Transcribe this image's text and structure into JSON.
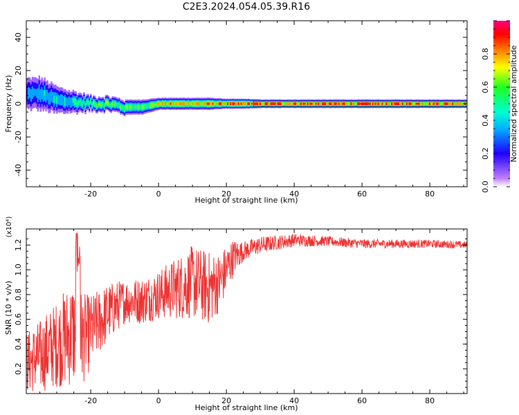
{
  "figure": {
    "title": "C2E3.2024.054.05.39.R16"
  },
  "chart_data": [
    {
      "type": "heatmap",
      "title": "C2E3.2024.054.05.39.R16",
      "xlabel": "Height of straight line (km)",
      "ylabel": "Frequency (Hz)",
      "xlim": [
        -39,
        91
      ],
      "ylim": [
        -50,
        50
      ],
      "x_ticks": [
        -20,
        0,
        20,
        40,
        60,
        80
      ],
      "y_ticks": [
        -40,
        -20,
        0,
        20,
        40
      ],
      "colorbar": {
        "label": "Normalized spectral amplitude",
        "range": [
          0,
          1
        ],
        "ticks": [
          "0.0",
          "0.2",
          "0.4",
          "0.6",
          "0.8"
        ],
        "colormap": [
          "#ffffff",
          "#c080ff",
          "#2000ff",
          "#00b0ff",
          "#00ffd0",
          "#20ff20",
          "#ffff00",
          "#ff8000",
          "#ff0000",
          "#ff0080"
        ]
      },
      "ridge": {
        "description_points_x": [
          -39,
          -35,
          -30,
          -25,
          -20,
          -15,
          -10,
          -5,
          0,
          5,
          10,
          15,
          20,
          25,
          30,
          40,
          60,
          91
        ],
        "frequency": [
          6,
          6,
          2,
          1,
          0,
          0,
          -2,
          -2,
          0,
          0,
          0,
          0,
          0,
          0,
          0,
          0,
          0,
          0
        ],
        "spread": [
          5,
          5,
          4,
          3,
          2,
          2,
          2,
          2,
          1.5,
          1.5,
          1.5,
          1.5,
          1.2,
          1.2,
          1,
          1,
          1,
          1
        ],
        "intensity": [
          0.4,
          0.5,
          0.55,
          0.6,
          0.65,
          0.7,
          0.7,
          0.75,
          0.85,
          0.9,
          0.9,
          0.9,
          0.95,
          0.95,
          1,
          1,
          1,
          1
        ]
      }
    },
    {
      "type": "line",
      "xlabel": "Height of straight line (km)",
      "ylabel": "SNR (10 * v/v)",
      "y_multiplier": "(x10⁴)",
      "xlim": [
        -39,
        91
      ],
      "ylim": [
        0,
        1.33
      ],
      "x_ticks": [
        -20,
        0,
        20,
        40,
        60,
        80
      ],
      "y_ticks": [
        "0.2",
        "0.4",
        "0.6",
        "0.8",
        "1.0",
        "1.2"
      ],
      "y_tick_values": [
        0.2,
        0.4,
        0.6,
        0.8,
        1.0,
        1.2
      ],
      "color": "#ee3333",
      "trend_x": [
        -39,
        -35,
        -30,
        -25,
        -22,
        -20,
        -15,
        -10,
        -5,
        0,
        5,
        10,
        15,
        18,
        20,
        22,
        25,
        30,
        35,
        40,
        50,
        60,
        70,
        80,
        91
      ],
      "trend_y": [
        0.25,
        0.3,
        0.4,
        0.5,
        0.45,
        0.5,
        0.65,
        0.75,
        0.75,
        0.8,
        0.85,
        0.9,
        0.85,
        0.9,
        1.0,
        1.1,
        1.15,
        1.2,
        1.22,
        1.24,
        1.23,
        1.21,
        1.21,
        1.21,
        1.2
      ],
      "noise_x": [
        -39,
        -30,
        -25,
        -20,
        -10,
        0,
        10,
        15,
        20,
        25,
        35,
        50,
        91
      ],
      "noise_amp": [
        0.25,
        0.35,
        0.45,
        0.3,
        0.18,
        0.2,
        0.3,
        0.3,
        0.2,
        0.08,
        0.06,
        0.04,
        0.03
      ]
    }
  ]
}
